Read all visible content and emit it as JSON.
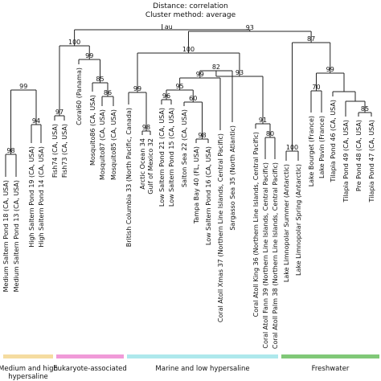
{
  "header": {
    "distance": "Distance:  correlation",
    "method": "Cluster method: average"
  },
  "root_label": "au",
  "leaves": [
    "Medium Saltern Pond 18 (CA, USA)",
    "Medium Saltern Pond 13 (CA, USA)",
    "High Saltern Pond 19 (CA, USA)",
    "High Saltern Pond 14 (CA, USA)",
    "Fish74 (CA, USA)",
    "Fish73 (CA, USA)",
    "Coral60 (Panama)",
    "Mosquito86 (CA, USA)",
    "Mosquito87 (CA, USA)",
    "Mosquito85 (CA, USA)",
    "British Columbia 33 (North Pacific, Canada)",
    "Arctic Ocean 34",
    "Gulf of Mexico 32",
    "Low Saltern Pond 21 (CA, USA)",
    "Low Saltern Pond 15 (CA, USA)",
    "Salton Sea 22 (CA, USA)",
    "Tampa Bay 40 (FL, USA)",
    "Low Saltern Pond 16 (CA, USA)",
    "Coral Atoll Xmas 37 (Northern Line Islands, Central Pacific)",
    "Sargasso Sea 35 (North Atlantic)",
    "Coral Atoll King 36 (Northern Line Islands, Central Pacific)",
    "Coral Atoll Fann 39 (Northern Line Islands, Central Pacific)",
    "Coral Atoll Palm 38 (Northern Line Islands, Central Pacific)",
    "Lake Limnopolar Summer (Antarctic)",
    "Lake Limnopolar Spring (Antarctic)",
    "Lake Bourget (France)",
    "Lake Pavin (France)",
    "Tilapia Pond 46 (CA, USA)",
    "Tilapia Pond 49 (CA, USA)",
    "Pre Pond 48 (CA, USA)",
    "Tilapia Pond 47 (CA, USA)"
  ],
  "bootstrap_values": [
    "98",
    "93",
    "100",
    "87",
    "99",
    "100",
    "99",
    "99",
    "85",
    "86",
    "99",
    "96",
    "99",
    "94",
    "97",
    "97",
    "98",
    "95",
    "82",
    "93",
    "60",
    "98",
    "97",
    "91",
    "80",
    "100",
    "99",
    "70",
    "85"
  ],
  "groups": [
    {
      "label": "Medium and high\nhypersaline",
      "color": "#f5dca0"
    },
    {
      "label": "Eukaryote-associated",
      "color": "#f09ad8"
    },
    {
      "label": "Marine and low hypersaline",
      "color": "#aee8ec"
    },
    {
      "label": "Freshwater",
      "color": "#80c878"
    }
  ],
  "colors": {
    "branch": "#222222",
    "text": "#111111"
  }
}
